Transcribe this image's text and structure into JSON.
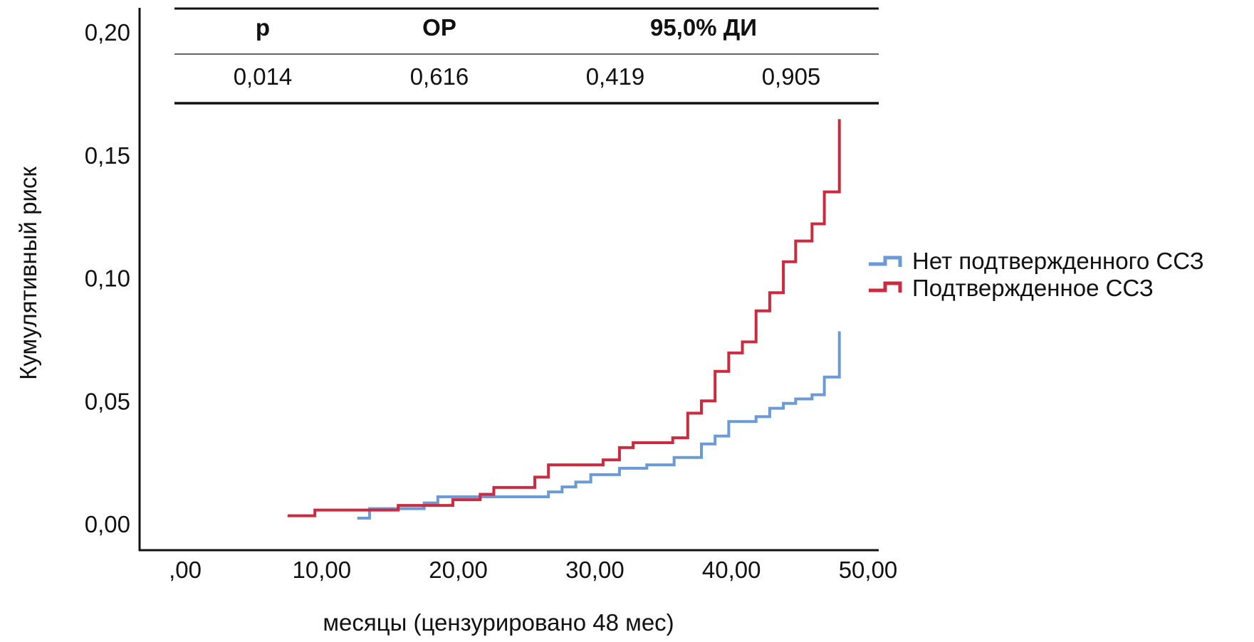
{
  "chart_data": {
    "type": "line",
    "subtype": "step (cumulative risk / Kaplan-Meier)",
    "title": "",
    "xlabel": "месяцы (цензурировано 48 мес)",
    "ylabel": "Кумулятивный риск",
    "xlim": [
      0,
      50
    ],
    "ylim": [
      0,
      0.2
    ],
    "x_ticks": [
      0,
      10,
      20,
      30,
      40,
      50
    ],
    "x_tick_labels": [
      ",00",
      "10,00",
      "20,00",
      "30,00",
      "40,00",
      "50,00"
    ],
    "y_ticks": [
      0,
      0.05,
      0.1,
      0.15,
      0.2
    ],
    "y_tick_labels": [
      "0,00",
      "0,05",
      "0,10",
      "0,15",
      "0,20"
    ],
    "grid": false,
    "legend_position": "right",
    "series": [
      {
        "name": "Нет подтвержденного ССЗ",
        "color": "#6b9bd6",
        "x": [
          12.6,
          13.5,
          17.5,
          18.5,
          26.6,
          27.6,
          28.6,
          29.7,
          31.8,
          33.8,
          35.8,
          37.8,
          38.8,
          39.8,
          41.8,
          42.8,
          43.8,
          44.7,
          45.9,
          46.8,
          47.9
        ],
        "y": [
          0.0023,
          0.0062,
          0.0085,
          0.011,
          0.013,
          0.015,
          0.017,
          0.02,
          0.0226,
          0.024,
          0.027,
          0.0325,
          0.0357,
          0.0416,
          0.0436,
          0.047,
          0.049,
          0.0508,
          0.0525,
          0.0597,
          0.0777
        ]
      },
      {
        "name": "Подтвержденное ССЗ",
        "color": "#cc2a3e",
        "x": [
          7.5,
          9.5,
          15.6,
          19.6,
          21.6,
          22.6,
          25.6,
          26.6,
          30.6,
          31.8,
          32.8,
          35.7,
          36.8,
          37.8,
          38.8,
          39.8,
          40.8,
          41.8,
          42.8,
          43.8,
          44.7,
          45.9,
          46.8,
          47.9
        ],
        "y": [
          0.0033,
          0.0056,
          0.0075,
          0.0098,
          0.012,
          0.0148,
          0.019,
          0.024,
          0.026,
          0.031,
          0.033,
          0.035,
          0.045,
          0.05,
          0.062,
          0.0695,
          0.074,
          0.0866,
          0.094,
          0.1066,
          0.115,
          0.122,
          0.135,
          0.164
        ]
      }
    ],
    "x_end": 48,
    "stats_table": {
      "headers": [
        "p",
        "ОР",
        "95,0% ДИ"
      ],
      "values": [
        "0,014",
        "0,616",
        "0,419",
        "0,905"
      ]
    }
  }
}
